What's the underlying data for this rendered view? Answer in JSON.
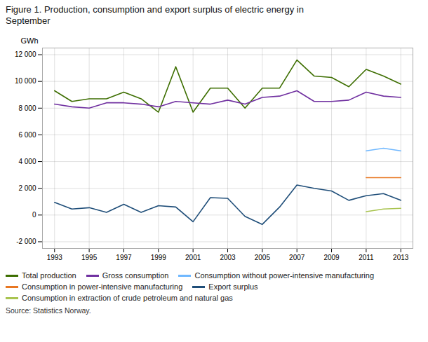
{
  "chart_data": {
    "type": "line",
    "title": "Figure 1. Production, consumption and export surplus of electric energy in\nSeptember",
    "y_label": "GWh",
    "source": "Source: Statistics Norway.",
    "x": [
      1993,
      1994,
      1995,
      1996,
      1997,
      1998,
      1999,
      2000,
      2001,
      2002,
      2003,
      2004,
      2005,
      2006,
      2007,
      2008,
      2009,
      2010,
      2011,
      2012,
      2013
    ],
    "series": [
      {
        "name": "Total production",
        "color": "#3d6e00",
        "values": [
          9300,
          8500,
          8700,
          8700,
          9200,
          8700,
          7700,
          11100,
          7700,
          9500,
          9500,
          8000,
          9500,
          9500,
          11600,
          10400,
          10300,
          9600,
          10900,
          10400,
          9800
        ]
      },
      {
        "name": "Gross consumption",
        "color": "#7030a0",
        "values": [
          8300,
          8100,
          8000,
          8400,
          8400,
          8300,
          8100,
          8500,
          8400,
          8300,
          8600,
          8300,
          8800,
          8900,
          9300,
          8500,
          8500,
          8600,
          9200,
          8900,
          8800
        ]
      },
      {
        "name": "Consumption without power-intensive manufacturing",
        "color": "#70b8ff",
        "values": [
          null,
          null,
          null,
          null,
          null,
          null,
          null,
          null,
          null,
          null,
          null,
          null,
          null,
          null,
          null,
          null,
          null,
          null,
          4800,
          5000,
          4800
        ]
      },
      {
        "name": "Consumption in power-intensive manufacturing",
        "color": "#e87722",
        "values": [
          null,
          null,
          null,
          null,
          null,
          null,
          null,
          null,
          null,
          null,
          null,
          null,
          null,
          null,
          null,
          null,
          null,
          null,
          2800,
          2800,
          2800
        ]
      },
      {
        "name": "Export surplus",
        "color": "#1f4e79",
        "values": [
          950,
          450,
          550,
          200,
          800,
          200,
          700,
          600,
          -500,
          1300,
          1250,
          -100,
          -700,
          600,
          2250,
          2000,
          1800,
          1100,
          1450,
          1600,
          1100
        ]
      },
      {
        "name": "Consumption in extraction of crude petroleum and natural gas",
        "color": "#a9c450",
        "values": [
          null,
          null,
          null,
          null,
          null,
          null,
          null,
          null,
          null,
          null,
          null,
          null,
          null,
          null,
          null,
          null,
          null,
          null,
          250,
          450,
          500
        ]
      }
    ],
    "xlim": [
      1992.3,
      2013.7
    ],
    "xticks": [
      1993,
      1995,
      1997,
      1999,
      2001,
      2003,
      2005,
      2007,
      2009,
      2011,
      2013
    ],
    "ylim": [
      -2500,
      12500
    ],
    "yticks": [
      {
        "value": -2000,
        "label": "-2 000"
      },
      0,
      {
        "value": 2000,
        "label": "2 000"
      },
      {
        "value": 4000,
        "label": "4 000"
      },
      {
        "value": 6000,
        "label": "6 000"
      },
      {
        "value": 8000,
        "label": "8 000"
      },
      {
        "value": 10000,
        "label": "10 000"
      },
      {
        "value": 12000,
        "label": "12 000"
      }
    ],
    "grid": true,
    "legend": "bottom"
  }
}
